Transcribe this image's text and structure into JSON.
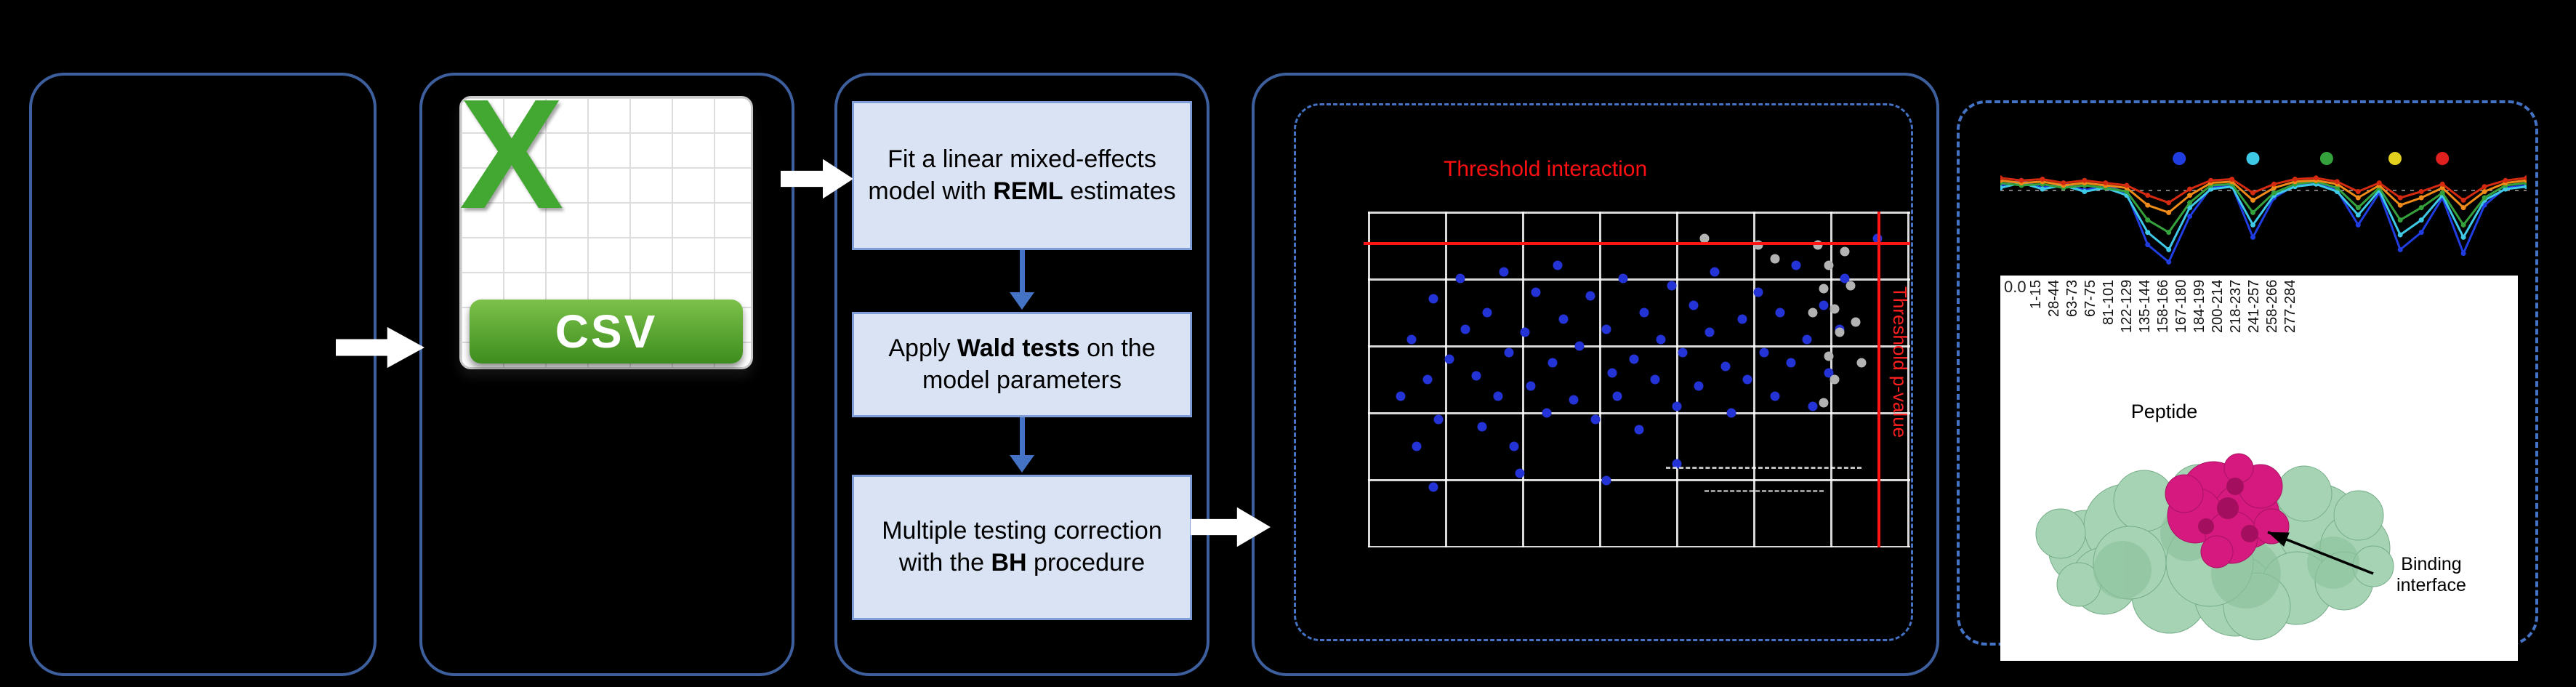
{
  "colors": {
    "box_border": "#3e5f9e",
    "dashed_border": "#4472c4",
    "step_fill": "#dae3f3",
    "arrow_white": "#ffffff",
    "csv_green": "#43a832",
    "threshold_red": "#ff1515"
  },
  "figure": {
    "csv": {
      "x_letter": "X",
      "label": "CSV"
    },
    "steps": [
      {
        "pre": "Fit a linear mixed-effects model with ",
        "bold": "REML",
        "post": " estimates"
      },
      {
        "pre": "Apply ",
        "bold": "Wald tests",
        "post": " on the model parameters"
      },
      {
        "pre": "Multiple testing correction with the ",
        "bold": "BH",
        "post": " procedure"
      }
    ]
  },
  "scatter": {
    "title": "Threshold interaction",
    "side_label": "Threshold p-value",
    "hline_y": 9,
    "vline_x": 94,
    "point_colors": {
      "blue": "#2433d6",
      "gray": "#b3b3b3"
    },
    "points": [
      [
        6,
        55,
        "b"
      ],
      [
        8,
        38,
        "b"
      ],
      [
        9,
        70,
        "b"
      ],
      [
        11,
        50,
        "b"
      ],
      [
        12,
        26,
        "b"
      ],
      [
        13,
        62,
        "b"
      ],
      [
        15,
        44,
        "b"
      ],
      [
        17,
        20,
        "b"
      ],
      [
        18,
        35,
        "b"
      ],
      [
        20,
        49,
        "b"
      ],
      [
        21,
        64,
        "b"
      ],
      [
        22,
        30,
        "b"
      ],
      [
        24,
        55,
        "b"
      ],
      [
        25,
        18,
        "b"
      ],
      [
        26,
        42,
        "b"
      ],
      [
        27,
        70,
        "b"
      ],
      [
        29,
        36,
        "b"
      ],
      [
        30,
        52,
        "b"
      ],
      [
        31,
        24,
        "b"
      ],
      [
        33,
        60,
        "b"
      ],
      [
        34,
        45,
        "b"
      ],
      [
        35,
        16,
        "b"
      ],
      [
        36,
        32,
        "b"
      ],
      [
        38,
        56,
        "b"
      ],
      [
        39,
        40,
        "b"
      ],
      [
        41,
        25,
        "b"
      ],
      [
        42,
        62,
        "b"
      ],
      [
        44,
        35,
        "b"
      ],
      [
        45,
        48,
        "b"
      ],
      [
        46,
        55,
        "b"
      ],
      [
        47,
        20,
        "b"
      ],
      [
        49,
        44,
        "b"
      ],
      [
        50,
        65,
        "b"
      ],
      [
        51,
        30,
        "b"
      ],
      [
        53,
        50,
        "b"
      ],
      [
        54,
        38,
        "b"
      ],
      [
        56,
        22,
        "b"
      ],
      [
        57,
        58,
        "b"
      ],
      [
        58,
        42,
        "b"
      ],
      [
        60,
        28,
        "b"
      ],
      [
        61,
        52,
        "b"
      ],
      [
        63,
        36,
        "b"
      ],
      [
        64,
        18,
        "b"
      ],
      [
        66,
        46,
        "b"
      ],
      [
        67,
        60,
        "b"
      ],
      [
        69,
        32,
        "b"
      ],
      [
        70,
        50,
        "b"
      ],
      [
        72,
        24,
        "b"
      ],
      [
        73,
        42,
        "b"
      ],
      [
        75,
        55,
        "b"
      ],
      [
        76,
        30,
        "b"
      ],
      [
        78,
        45,
        "b"
      ],
      [
        79,
        16,
        "b"
      ],
      [
        81,
        38,
        "b"
      ],
      [
        82,
        58,
        "b"
      ],
      [
        84,
        28,
        "b"
      ],
      [
        85,
        48,
        "b"
      ],
      [
        87,
        35,
        "b"
      ],
      [
        88,
        20,
        "b"
      ],
      [
        94,
        8,
        "b"
      ],
      [
        44,
        80,
        "b"
      ],
      [
        28,
        78,
        "b"
      ],
      [
        57,
        75,
        "b"
      ],
      [
        12,
        82,
        "b"
      ],
      [
        83,
        10,
        "g"
      ],
      [
        85,
        16,
        "g"
      ],
      [
        84,
        23,
        "g"
      ],
      [
        86,
        29,
        "g"
      ],
      [
        87,
        36,
        "g"
      ],
      [
        85,
        43,
        "g"
      ],
      [
        86,
        50,
        "g"
      ],
      [
        84,
        57,
        "g"
      ],
      [
        82,
        30,
        "g"
      ],
      [
        72,
        10,
        "g"
      ],
      [
        75,
        14,
        "g"
      ],
      [
        62,
        8,
        "g"
      ],
      [
        88,
        12,
        "g"
      ],
      [
        89,
        22,
        "g"
      ],
      [
        90,
        33,
        "g"
      ],
      [
        91,
        45,
        "g"
      ]
    ]
  },
  "results": {
    "chart": {
      "type": "line",
      "series": [
        {
          "color": "#1f3de0",
          "values": [
            30,
            26,
            32,
            28,
            34,
            30,
            36,
            78,
            92,
            55,
            32,
            30,
            72,
            40,
            30,
            28,
            34,
            62,
            36,
            82,
            68,
            40,
            85,
            46,
            32,
            30
          ]
        },
        {
          "color": "#3ec9e6",
          "values": [
            32,
            28,
            33,
            30,
            35,
            32,
            38,
            68,
            82,
            48,
            33,
            31,
            62,
            38,
            31,
            29,
            35,
            54,
            34,
            70,
            58,
            38,
            72,
            42,
            33,
            31
          ]
        },
        {
          "color": "#35a13c",
          "values": [
            28,
            30,
            29,
            32,
            30,
            32,
            35,
            58,
            68,
            44,
            30,
            29,
            52,
            36,
            29,
            27,
            32,
            48,
            32,
            58,
            48,
            36,
            62,
            40,
            30,
            28
          ]
        },
        {
          "color": "#f08a18",
          "values": [
            26,
            28,
            27,
            30,
            28,
            30,
            32,
            46,
            52,
            38,
            28,
            27,
            42,
            32,
            27,
            26,
            29,
            40,
            30,
            46,
            40,
            32,
            48,
            35,
            28,
            26
          ]
        },
        {
          "color": "#d42a10",
          "values": [
            24,
            26,
            25,
            28,
            26,
            28,
            30,
            38,
            44,
            33,
            26,
            25,
            36,
            29,
            25,
            24,
            27,
            35,
            28,
            40,
            35,
            29,
            42,
            31,
            26,
            24
          ]
        }
      ],
      "marker_dots": [
        {
          "color": "#1f3de0",
          "x": 34
        },
        {
          "color": "#3ec9e6",
          "x": 48
        },
        {
          "color": "#35a13c",
          "x": 62
        },
        {
          "color": "#e3cf1e",
          "x": 75
        },
        {
          "color": "#e01f1f",
          "x": 84
        }
      ]
    },
    "y_tick": "0.0",
    "peptide_labels": [
      "1-15",
      "28-44",
      "63-73",
      "67-75",
      "81-101",
      "122-129",
      "135-144",
      "158-166",
      "167-180",
      "184-199",
      "200-214",
      "218-237",
      "241-257",
      "258-266",
      "277-284"
    ],
    "x_axis_label": "Peptide",
    "binding_label": "Binding interface"
  }
}
